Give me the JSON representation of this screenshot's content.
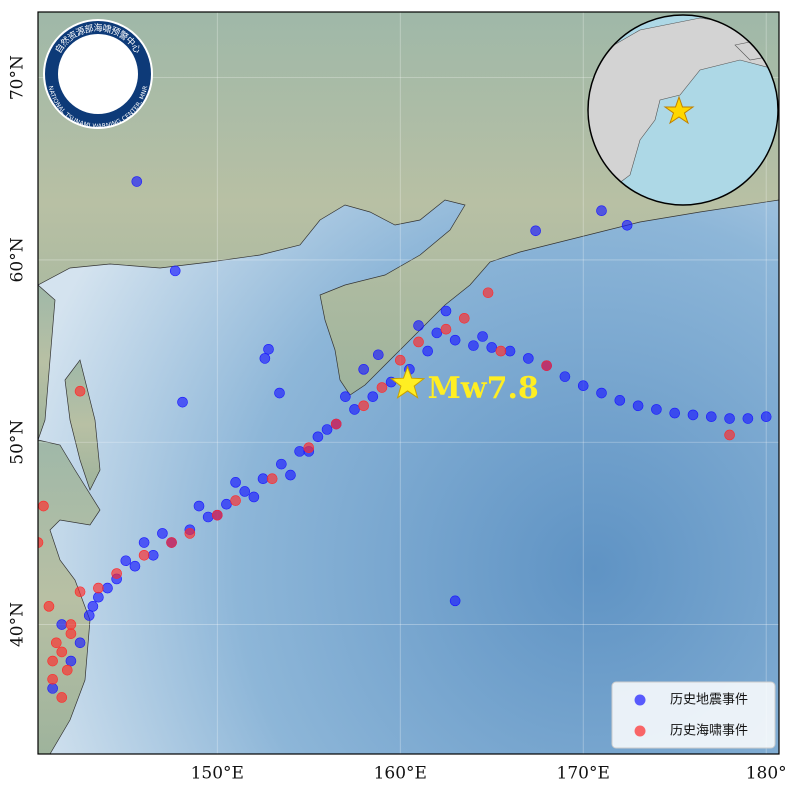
{
  "map": {
    "logo": {
      "name_en": "NATIONAL TSUNAMI WARNING CENTER, MNR",
      "name_zh": "自然资源部海啸预警中心"
    },
    "xlim": [
      140.2,
      180.7
    ],
    "ylim": [
      32.9,
      73.6
    ],
    "xticks": [
      {
        "value": 150,
        "label": "150°E"
      },
      {
        "value": 160,
        "label": "160°E"
      },
      {
        "value": 170,
        "label": "170°E"
      },
      {
        "value": 180,
        "label": "180°"
      }
    ],
    "yticks": [
      {
        "value": 40,
        "label": "40°N"
      },
      {
        "value": 50,
        "label": "50°N"
      },
      {
        "value": 60,
        "label": "60°N"
      },
      {
        "value": 70,
        "label": "70°N"
      }
    ],
    "grid": true,
    "epicenter": {
      "lon": 160.4,
      "lat": 53.2,
      "label": "Mw7.8",
      "color": "#ffee22"
    },
    "legend_position": "lower right",
    "series": [
      {
        "name": "历史地震事件",
        "color": "#1a1aff",
        "lon": [
          142,
          142.5,
          143,
          143.5,
          144.5,
          145.5,
          146.5,
          147.5,
          148.5,
          149.5,
          150.5,
          151.5,
          152.5,
          153.5,
          154.5,
          155.5,
          156.5,
          157.5,
          158.5,
          159.5,
          160.5,
          161.5,
          162,
          163,
          164,
          165,
          166,
          167,
          168,
          169,
          170,
          171,
          172,
          173,
          174,
          175,
          176,
          177,
          178,
          179,
          180,
          144,
          146,
          150,
          152,
          155,
          157,
          158,
          152.6,
          153.4,
          148.1,
          152.8,
          145.6,
          147.7,
          171,
          172.4,
          167.4,
          163,
          141,
          141.5,
          143.2,
          145,
          147,
          149,
          151,
          154,
          156,
          158.8,
          161,
          162.5,
          164.5
        ],
        "lat": [
          38,
          39,
          40.5,
          41.5,
          42.5,
          43.2,
          43.8,
          44.5,
          45.2,
          45.9,
          46.6,
          47.3,
          48,
          48.8,
          49.5,
          50.3,
          51,
          51.8,
          52.5,
          53.3,
          54,
          55,
          56,
          55.6,
          55.3,
          55.2,
          55,
          54.6,
          54.2,
          53.6,
          53.1,
          52.7,
          52.3,
          52,
          51.8,
          51.6,
          51.5,
          51.4,
          51.3,
          51.3,
          51.4,
          42,
          44.5,
          46,
          47,
          49.5,
          52.5,
          54,
          54.6,
          52.7,
          52.2,
          55.1,
          64.3,
          59.4,
          62.7,
          61.9,
          61.6,
          41.3,
          36.5,
          40,
          41,
          43.5,
          45,
          46.5,
          47.8,
          48.2,
          50.7,
          54.8,
          56.4,
          57.2,
          55.8
        ]
      },
      {
        "name": "历史海啸事件",
        "color": "#ff2a2a",
        "lon": [
          141,
          141.5,
          142,
          141,
          141.5,
          142,
          141.2,
          140.8,
          141.8,
          142.5,
          143.5,
          144.5,
          146,
          147.5,
          148.5,
          150,
          151,
          153,
          155,
          156.5,
          158,
          159,
          160,
          161,
          162.5,
          163.5,
          165.5,
          168,
          178,
          164.8,
          142.5,
          140.5,
          140.2
        ],
        "lat": [
          38,
          38.5,
          39.5,
          37,
          36,
          40,
          39,
          41,
          37.5,
          41.8,
          42,
          42.8,
          43.8,
          44.5,
          45,
          46,
          46.8,
          48,
          49.7,
          51,
          52,
          53,
          54.5,
          55.5,
          56.2,
          56.8,
          55,
          54.2,
          50.4,
          58.2,
          52.8,
          46.5,
          44.5
        ]
      }
    ]
  }
}
